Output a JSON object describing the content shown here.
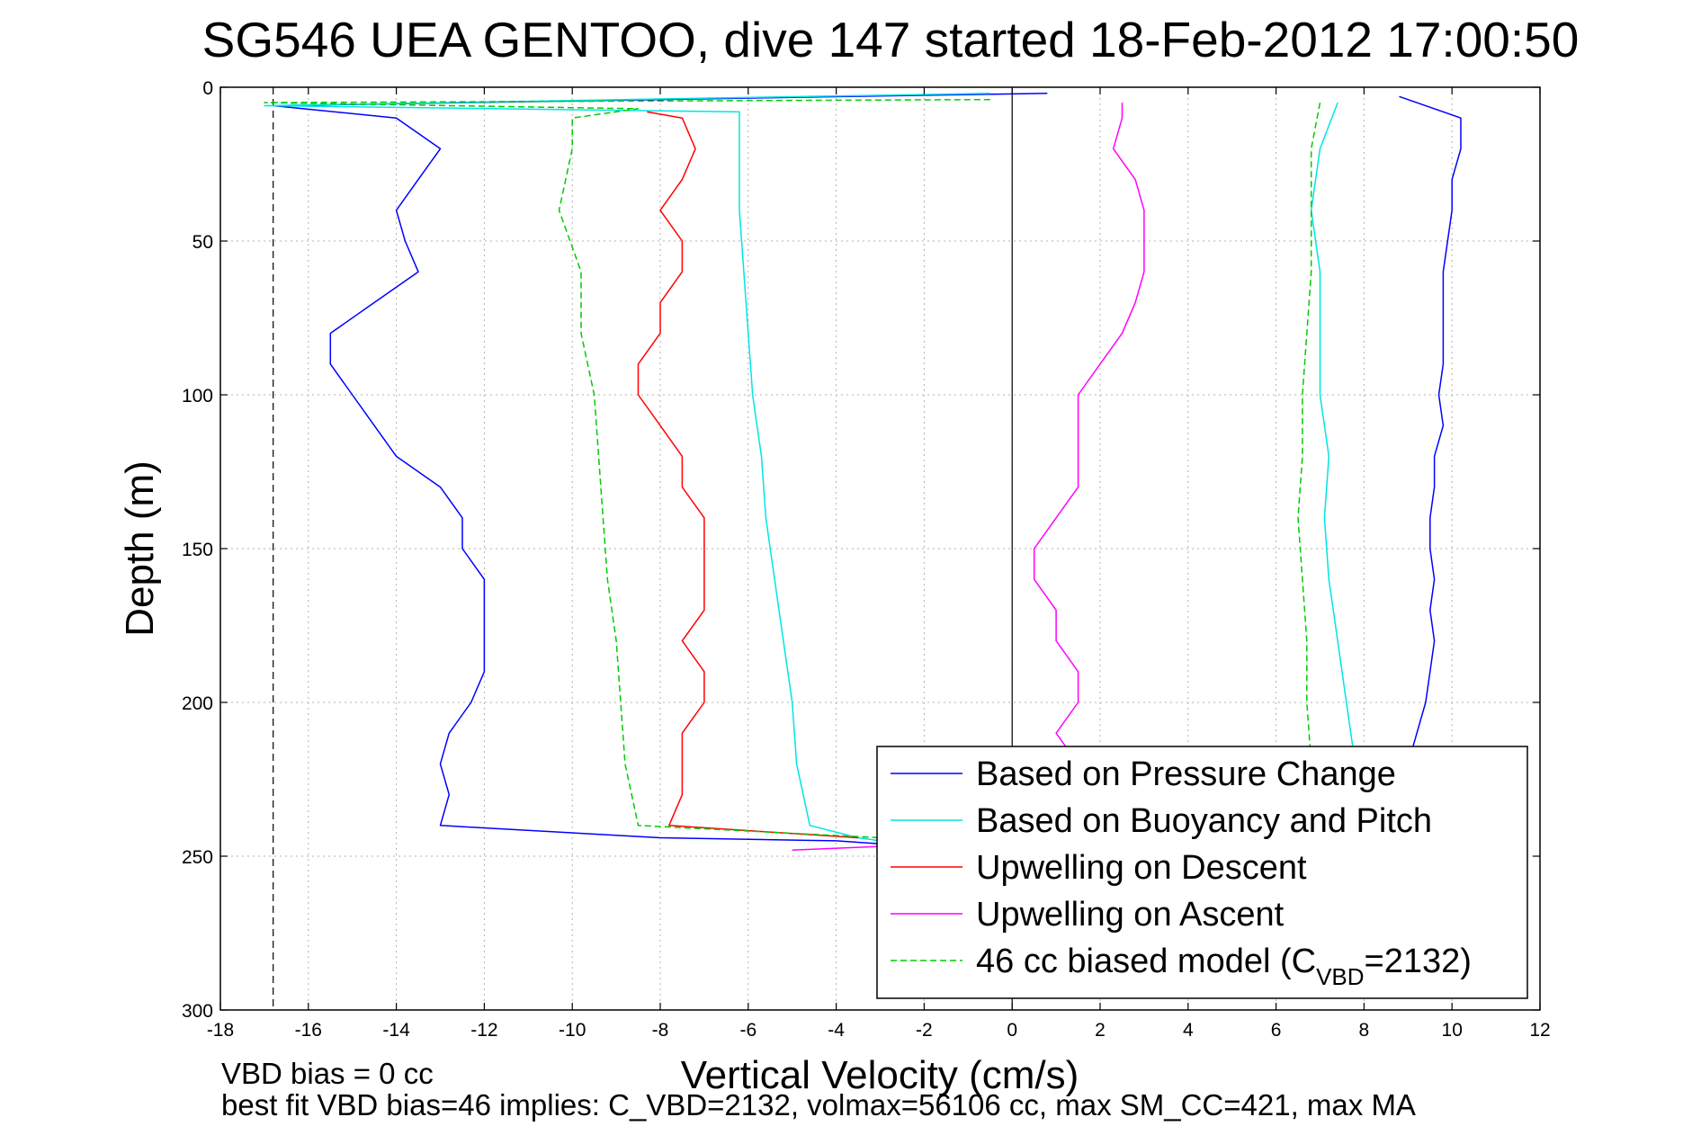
{
  "chart_data": {
    "type": "line",
    "title": "SG546 UEA GENTOO, dive 147 started 18-Feb-2012 17:00:50",
    "xlabel": "Vertical Velocity (cm/s)",
    "ylabel": "Depth (m)",
    "xlim": [
      -18,
      12
    ],
    "ylim": [
      0,
      300
    ],
    "y_reversed": true,
    "x_ticks": [
      "-18",
      "-16",
      "-14",
      "-12",
      "-10",
      "-8",
      "-6",
      "-4",
      "-2",
      "0",
      "2",
      "4",
      "6",
      "8",
      "10",
      "12"
    ],
    "y_ticks": [
      "0",
      "50",
      "100",
      "150",
      "200",
      "250",
      "300"
    ],
    "grid": true,
    "legend_position": "bottom-right",
    "reference_lines": [
      {
        "axis": "x",
        "value": 0,
        "style": "solid"
      },
      {
        "axis": "x",
        "value": -16.8,
        "style": "dashed"
      }
    ],
    "series": [
      {
        "name": "Based on Pressure Change",
        "color": "#0000ff",
        "depth": [
          2,
          6,
          10,
          15,
          20,
          30,
          40,
          50,
          60,
          70,
          80,
          90,
          100,
          110,
          120,
          130,
          140,
          150,
          160,
          170,
          180,
          190,
          200,
          210,
          220,
          230,
          240,
          244,
          245,
          246,
          240,
          230,
          220,
          210,
          200,
          190,
          180,
          170,
          160,
          150,
          140,
          130,
          120,
          110,
          100,
          90,
          80,
          70,
          60,
          50,
          40,
          30,
          20,
          10,
          3
        ],
        "velocity": [
          0.8,
          -16.8,
          -14,
          -13.5,
          -13,
          -13.5,
          -14,
          -13.8,
          -13.5,
          -14.5,
          -15.5,
          -15.5,
          -15,
          -14.5,
          -14,
          -13,
          -12.5,
          -12.5,
          -12,
          -12,
          -12,
          -12,
          -12.3,
          -12.8,
          -13,
          -12.8,
          -13,
          -8,
          -4,
          -3,
          9,
          9,
          9,
          9.2,
          9.4,
          9.5,
          9.6,
          9.5,
          9.6,
          9.5,
          9.5,
          9.6,
          9.6,
          9.8,
          9.7,
          9.8,
          9.8,
          9.8,
          9.8,
          9.9,
          10,
          10,
          10.2,
          10.2,
          8.8
        ]
      },
      {
        "name": "Based on Buoyancy and Pitch",
        "color": "#00e5e5",
        "depth": [
          2,
          6,
          8,
          12,
          20,
          40,
          60,
          80,
          100,
          120,
          140,
          160,
          180,
          200,
          220,
          240,
          244,
          245,
          240,
          220,
          200,
          180,
          160,
          140,
          120,
          100,
          80,
          60,
          40,
          20,
          5
        ],
        "velocity": [
          -0.5,
          -17,
          -6.2,
          -6.2,
          -6.2,
          -6.2,
          -6.1,
          -6,
          -5.9,
          -5.7,
          -5.6,
          -5.4,
          -5.2,
          -5,
          -4.9,
          -4.6,
          -3.5,
          -3,
          7.5,
          7.8,
          7.6,
          7.4,
          7.2,
          7.1,
          7.2,
          7,
          7,
          7,
          6.8,
          7,
          7.4
        ]
      },
      {
        "name": "Upwelling on Descent",
        "color": "#ff0000",
        "depth": [
          8,
          10,
          20,
          30,
          40,
          50,
          60,
          70,
          80,
          90,
          100,
          110,
          120,
          130,
          140,
          150,
          160,
          170,
          180,
          190,
          200,
          210,
          220,
          230,
          240,
          244
        ],
        "velocity": [
          -8.3,
          -7.5,
          -7.2,
          -7.5,
          -8,
          -7.5,
          -7.5,
          -8,
          -8,
          -8.5,
          -8.5,
          -8,
          -7.5,
          -7.5,
          -7,
          -7,
          -7,
          -7,
          -7.5,
          -7,
          -7,
          -7.5,
          -7.5,
          -7.5,
          -7.8,
          -3.5
        ]
      },
      {
        "name": "Upwelling on Ascent",
        "color": "#ff00ff",
        "depth": [
          248,
          245,
          240,
          230,
          220,
          210,
          200,
          190,
          180,
          170,
          160,
          150,
          140,
          130,
          120,
          110,
          100,
          90,
          80,
          70,
          60,
          50,
          40,
          30,
          20,
          10,
          5
        ],
        "velocity": [
          -5,
          0,
          1,
          1,
          1.5,
          1,
          1.5,
          1.5,
          1,
          1,
          0.5,
          0.5,
          1,
          1.5,
          1.5,
          1.5,
          1.5,
          2,
          2.5,
          2.8,
          3,
          3,
          3,
          2.8,
          2.3,
          2.5,
          2.5
        ]
      },
      {
        "name": "46 cc biased model (C<sub>VBD</sub>=2132)",
        "color": "#00cc00",
        "style": "dashed",
        "depth": [
          4,
          5,
          7,
          10,
          20,
          40,
          60,
          80,
          100,
          120,
          140,
          160,
          180,
          200,
          220,
          240,
          244,
          240,
          220,
          200,
          180,
          160,
          140,
          120,
          100,
          80,
          60,
          40,
          20,
          5
        ],
        "velocity": [
          -0.5,
          -17,
          -8.5,
          -10,
          -10,
          -10.3,
          -9.8,
          -9.8,
          -9.5,
          -9.4,
          -9.3,
          -9.2,
          -9,
          -8.9,
          -8.8,
          -8.5,
          -3,
          6.8,
          6.8,
          6.7,
          6.7,
          6.6,
          6.5,
          6.6,
          6.6,
          6.7,
          6.8,
          6.8,
          6.8,
          7
        ]
      }
    ],
    "legend": [
      {
        "label": "Based on Pressure Change",
        "color": "#0000ff",
        "style": "solid"
      },
      {
        "label": "Based on Buoyancy and Pitch",
        "color": "#00e5e5",
        "style": "solid"
      },
      {
        "label": "Upwelling on Descent",
        "color": "#ff0000",
        "style": "solid"
      },
      {
        "label": "Upwelling on Ascent",
        "color": "#ff00ff",
        "style": "solid"
      },
      {
        "label_prefix": "46 cc biased model (C",
        "label_sub": "VBD",
        "label_suffix": "=2132)",
        "color": "#00cc00",
        "style": "dashed"
      }
    ],
    "annotations": [
      "VBD bias = 0 cc",
      "best fit VBD bias=46 implies: C_VBD=2132, volmax=56106 cc, max SM_CC=421, max MA"
    ]
  }
}
